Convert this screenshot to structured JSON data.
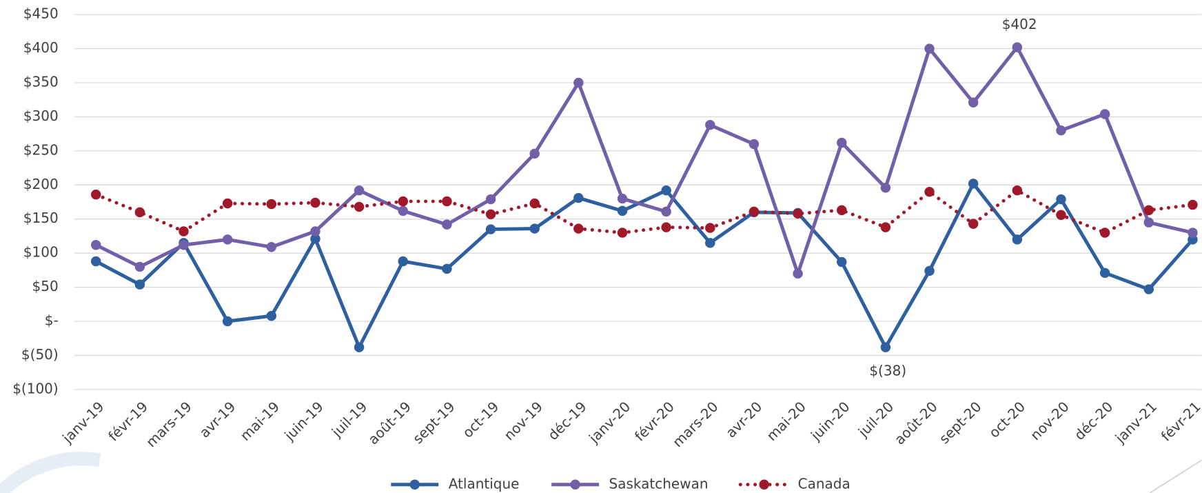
{
  "chart_data": {
    "type": "line",
    "categories": [
      "janv-19",
      "févr-19",
      "mars-19",
      "avr-19",
      "mai-19",
      "juin-19",
      "juil-19",
      "août-19",
      "sept-19",
      "oct-19",
      "nov-19",
      "déc-19",
      "janv-20",
      "févr-20",
      "mars-20",
      "avr-20",
      "mai-20",
      "juin-20",
      "juil-20",
      "août-20",
      "sept-20",
      "oct-20",
      "nov-20",
      "déc-20",
      "janv-21",
      "févr-21"
    ],
    "series": [
      {
        "name": "Atlantique",
        "color": "#2e5f9e",
        "dashed": false,
        "values": [
          88,
          54,
          115,
          0,
          8,
          121,
          -38,
          88,
          77,
          135,
          136,
          181,
          162,
          192,
          115,
          160,
          159,
          87,
          -38,
          74,
          202,
          120,
          179,
          71,
          47,
          120
        ],
        "value_labels": [
          null,
          null,
          null,
          null,
          null,
          null,
          null,
          null,
          null,
          null,
          null,
          null,
          null,
          null,
          null,
          null,
          null,
          null,
          "$(38)",
          null,
          null,
          null,
          null,
          null,
          null,
          null
        ]
      },
      {
        "name": "Saskatchewan",
        "color": "#7160a8",
        "dashed": false,
        "values": [
          112,
          80,
          112,
          120,
          109,
          132,
          192,
          162,
          142,
          179,
          246,
          350,
          180,
          161,
          288,
          260,
          70,
          262,
          196,
          400,
          321,
          402,
          280,
          304,
          145,
          130
        ],
        "value_labels": [
          null,
          null,
          null,
          null,
          null,
          null,
          null,
          null,
          null,
          null,
          null,
          null,
          null,
          null,
          null,
          null,
          null,
          null,
          null,
          null,
          null,
          "$402",
          null,
          null,
          null,
          null
        ]
      },
      {
        "name": "Canada",
        "color": "#a0192a",
        "dashed": true,
        "values": [
          186,
          160,
          132,
          173,
          172,
          174,
          168,
          176,
          176,
          157,
          173,
          136,
          130,
          138,
          137,
          161,
          158,
          163,
          138,
          190,
          143,
          192,
          156,
          130,
          163,
          171
        ]
      }
    ],
    "ylim": [
      -100,
      450
    ],
    "yticks": [
      {
        "value": -100,
        "label": "$(100)"
      },
      {
        "value": -50,
        "label": "$(50)"
      },
      {
        "value": 0,
        "label": "$-"
      },
      {
        "value": 50,
        "label": "$50"
      },
      {
        "value": 100,
        "label": "$100"
      },
      {
        "value": 150,
        "label": "$150"
      },
      {
        "value": 200,
        "label": "$200"
      },
      {
        "value": 250,
        "label": "$250"
      },
      {
        "value": 300,
        "label": "$300"
      },
      {
        "value": 350,
        "label": "$350"
      },
      {
        "value": 400,
        "label": "$400"
      },
      {
        "value": 450,
        "label": "$450"
      }
    ],
    "grid": true,
    "legend": "bottom"
  }
}
